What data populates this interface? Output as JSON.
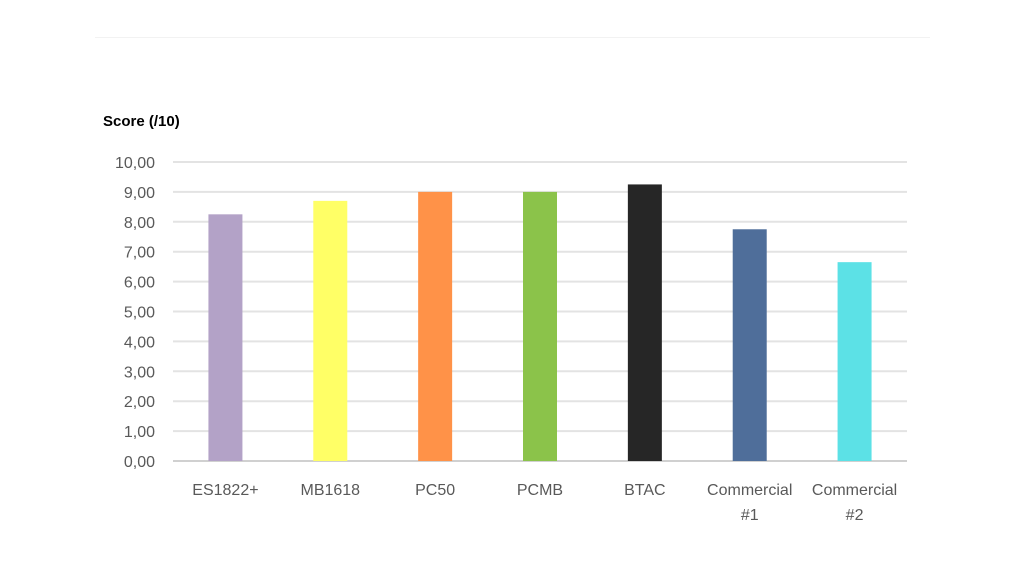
{
  "chart_data": {
    "type": "bar",
    "title": "",
    "ylabel": "Score (/10)",
    "xlabel": "",
    "ylim": [
      0,
      10
    ],
    "yticks": [
      "0,00",
      "1,00",
      "2,00",
      "3,00",
      "4,00",
      "5,00",
      "6,00",
      "7,00",
      "8,00",
      "9,00",
      "10,00"
    ],
    "grid": true,
    "categories": [
      [
        "ES1822+"
      ],
      [
        "MB1618"
      ],
      [
        "PC50"
      ],
      [
        "PCMB"
      ],
      [
        "BTAC"
      ],
      [
        "Commercial",
        "#1"
      ],
      [
        "Commercial",
        "#2"
      ]
    ],
    "values": [
      8.25,
      8.7,
      9.0,
      9.0,
      9.25,
      7.75,
      6.65
    ],
    "colors": [
      "#b3a2c7",
      "#ffff66",
      "#ff9248",
      "#8bc34a",
      "#262626",
      "#4f6e9a",
      "#5ce1e6"
    ]
  }
}
